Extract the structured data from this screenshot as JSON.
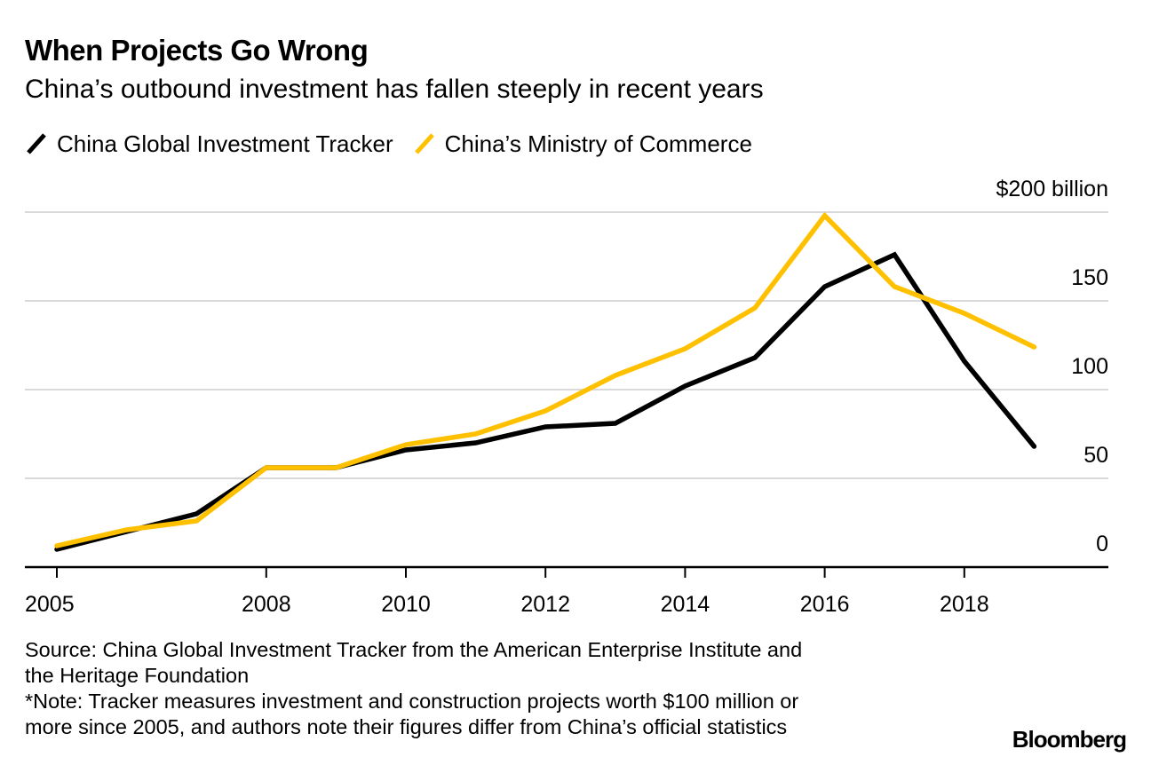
{
  "header": {
    "title": "When Projects Go Wrong",
    "subtitle": "China’s outbound investment has fallen steeply in recent years"
  },
  "legend": [
    {
      "label": "China Global Investment Tracker",
      "color": "#000000",
      "icon": "diagonal-line-icon"
    },
    {
      "label": "China’s Ministry of Commerce",
      "color": "#FFC000",
      "icon": "diagonal-line-icon"
    }
  ],
  "footer": {
    "source_lines": [
      "Source: China Global Investment Tracker from the American Enterprise Institute and",
      "the Heritage Foundation",
      "*Note: Tracker measures investment and construction projects worth $100 million or",
      "more since 2005, and authors note their figures differ from China’s official statistics"
    ],
    "logo": "Bloomberg"
  },
  "chart_data": {
    "type": "line",
    "title": "When Projects Go Wrong",
    "subtitle": "China’s outbound investment has fallen steeply in recent years",
    "xlabel": "",
    "ylabel": "$ billion",
    "x": [
      2005,
      2006,
      2007,
      2008,
      2009,
      2010,
      2011,
      2012,
      2013,
      2014,
      2015,
      2016,
      2017,
      2018,
      2019
    ],
    "x_ticks": [
      2005,
      2008,
      2010,
      2012,
      2014,
      2016,
      2018
    ],
    "x_tick_labels": [
      "2005",
      "2008",
      "2010",
      "2012",
      "2014",
      "2016",
      "2018"
    ],
    "xlim": [
      2005,
      2019
    ],
    "y_ticks": [
      0,
      50,
      100,
      150,
      200
    ],
    "y_tick_labels": [
      "0",
      "50",
      "100",
      "150",
      "$200 billion"
    ],
    "ylim": [
      0,
      200
    ],
    "grid": true,
    "y_axis_side": "right",
    "legend_position": "top-left",
    "series": [
      {
        "name": "China Global Investment Tracker",
        "color": "#000000",
        "values": [
          10,
          20,
          30,
          56,
          56,
          66,
          70,
          79,
          81,
          102,
          118,
          158,
          176,
          116,
          68
        ]
      },
      {
        "name": "China’s Ministry of Commerce",
        "color": "#FFC000",
        "values": [
          12,
          21,
          26,
          56,
          56,
          69,
          75,
          88,
          108,
          123,
          146,
          198,
          158,
          143,
          124
        ]
      }
    ]
  }
}
